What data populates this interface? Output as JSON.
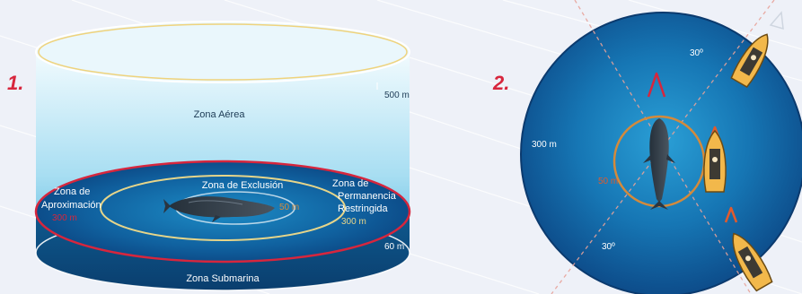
{
  "panels": [
    {
      "number": "1.",
      "labels": {
        "aerial_zone": "Zona Aérea",
        "aerial_height": "500 m",
        "exclusion_zone": "Zona de Exclusión",
        "exclusion_radius": "50 m",
        "approach_zone_line1": "Zona de",
        "approach_zone_line2": "Aproximación",
        "approach_radius": "300 m",
        "restricted_line1": "Zona de",
        "restricted_line2": "Permanencia",
        "restricted_line3": "Restringida",
        "restricted_radius": "300 m",
        "submarine_depth": "60 m",
        "submarine_zone": "Zona Submarina"
      }
    },
    {
      "number": "2.",
      "labels": {
        "outer_radius": "300 m",
        "inner_radius": "50 m",
        "angle_top": "30º",
        "angle_bottom": "30º"
      }
    }
  ],
  "colors": {
    "accent_red": "#d7263d",
    "orange_ring": "#d48a3b",
    "deep_blue": "#0a3e7a",
    "sky_top": "#e8f6fc",
    "sky_bottom": "#5bb9e0"
  },
  "icons": [
    "whale-icon",
    "boat-icon",
    "arrow-icon"
  ]
}
